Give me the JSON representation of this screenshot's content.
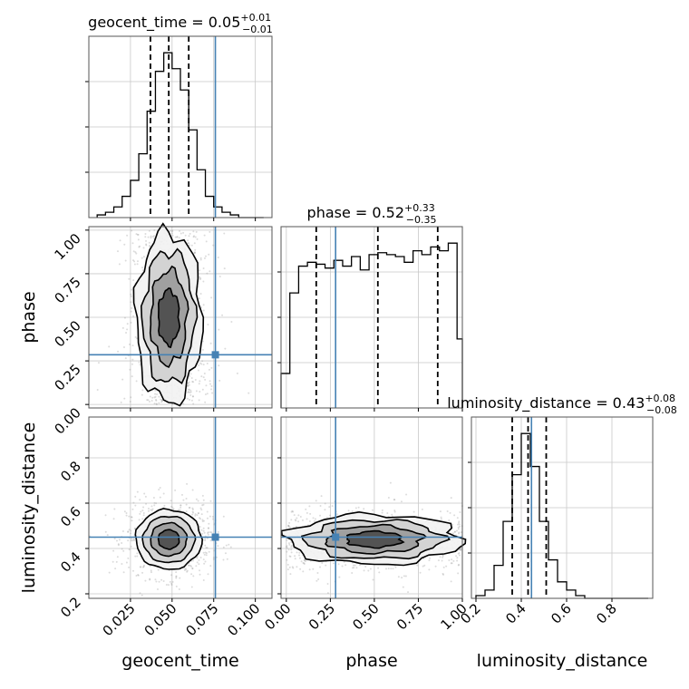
{
  "figure": {
    "type": "corner-plot",
    "parameters": [
      "geocent_time",
      "phase",
      "luminosity_distance"
    ]
  },
  "colors": {
    "truth": "#4682b4",
    "hist": "#000000",
    "grid": "#c8c8c8",
    "density_dark": "#2a2a2a",
    "points": "#9a9a9a"
  },
  "chart_data": [
    {
      "type": "histogram",
      "panel": "geocent_time",
      "title": {
        "param": "geocent_time",
        "median": "0.05",
        "plus": "+0.01",
        "minus": "−0.01"
      },
      "xlim": [
        0.0,
        0.11
      ],
      "bin_edges": [
        0.005,
        0.01,
        0.015,
        0.02,
        0.025,
        0.03,
        0.035,
        0.04,
        0.045,
        0.05,
        0.055,
        0.06,
        0.065,
        0.07,
        0.075,
        0.08,
        0.085,
        0.09,
        0.095,
        0.1,
        0.105
      ],
      "counts": [
        1,
        2,
        4,
        8,
        14,
        24,
        40,
        55,
        62,
        56,
        48,
        33,
        18,
        8,
        4,
        2,
        1,
        0,
        0,
        0
      ],
      "quantiles": [
        0.037,
        0.048,
        0.06
      ],
      "truth": 0.076,
      "xticks": [
        0.025,
        0.05,
        0.075,
        0.1
      ]
    },
    {
      "type": "histogram",
      "panel": "phase",
      "title": {
        "param": "phase",
        "median": "0.52",
        "plus": "+0.33",
        "minus": "−0.35"
      },
      "xlim": [
        -0.03,
        1.0
      ],
      "bin_edges": [
        -0.03,
        0.02,
        0.07,
        0.12,
        0.17,
        0.22,
        0.27,
        0.32,
        0.37,
        0.42,
        0.47,
        0.52,
        0.57,
        0.62,
        0.67,
        0.72,
        0.77,
        0.82,
        0.87,
        0.92,
        0.97,
        1.0
      ],
      "counts": [
        18,
        60,
        74,
        76,
        75,
        73,
        77,
        74,
        79,
        72,
        80,
        81,
        80,
        79,
        76,
        82,
        80,
        84,
        82,
        86,
        36
      ],
      "quantiles": [
        0.17,
        0.52,
        0.86
      ],
      "truth": 0.28,
      "xticks": [
        0.0,
        0.25,
        0.5,
        0.75,
        1.0
      ]
    },
    {
      "type": "histogram",
      "panel": "luminosity_distance",
      "title": {
        "param": "luminosity_distance",
        "median": "0.43",
        "plus": "+0.08",
        "minus": "−0.08"
      },
      "xlim": [
        0.18,
        0.98
      ],
      "bin_edges": [
        0.2,
        0.24,
        0.28,
        0.32,
        0.36,
        0.4,
        0.44,
        0.48,
        0.52,
        0.56,
        0.6,
        0.64,
        0.68,
        0.72,
        0.76,
        0.8,
        0.84,
        0.88,
        0.92,
        0.96
      ],
      "counts": [
        1,
        3,
        12,
        28,
        45,
        60,
        48,
        28,
        14,
        6,
        3,
        1,
        0,
        0,
        0,
        0,
        0,
        0,
        0
      ],
      "quantiles": [
        0.36,
        0.43,
        0.51
      ],
      "truth": 0.445,
      "xticks": [
        0.2,
        0.4,
        0.6,
        0.8
      ]
    },
    {
      "type": "scatter-contour",
      "panel": "phase vs geocent_time",
      "x": "geocent_time",
      "y": "phase",
      "xlim": [
        0.0,
        0.11
      ],
      "ylim": [
        -0.02,
        1.02
      ],
      "center": [
        0.048,
        0.5
      ],
      "spread": [
        0.009,
        0.3
      ],
      "truth": [
        0.076,
        0.285
      ],
      "yticks": [
        0.0,
        0.25,
        0.5,
        0.75,
        1.0
      ]
    },
    {
      "type": "scatter-contour",
      "panel": "luminosity_distance vs geocent_time",
      "x": "geocent_time",
      "y": "luminosity_distance",
      "xlim": [
        0.0,
        0.11
      ],
      "ylim": [
        0.18,
        0.98
      ],
      "center": [
        0.048,
        0.44
      ],
      "spread": [
        0.009,
        0.06
      ],
      "truth": [
        0.076,
        0.45
      ],
      "yticks": [
        0.2,
        0.4,
        0.6,
        0.8
      ]
    },
    {
      "type": "scatter-contour",
      "panel": "luminosity_distance vs phase",
      "x": "phase",
      "y": "luminosity_distance",
      "xlim": [
        -0.03,
        1.0
      ],
      "ylim": [
        0.18,
        0.98
      ],
      "center": [
        0.5,
        0.44
      ],
      "spread": [
        0.3,
        0.05
      ],
      "truth": [
        0.28,
        0.45
      ],
      "yticks": [
        0.2,
        0.4,
        0.6,
        0.8
      ]
    }
  ],
  "axis_labels": {
    "x": [
      "geocent_time",
      "phase",
      "luminosity_distance"
    ],
    "y": [
      "phase",
      "luminosity_distance"
    ]
  }
}
